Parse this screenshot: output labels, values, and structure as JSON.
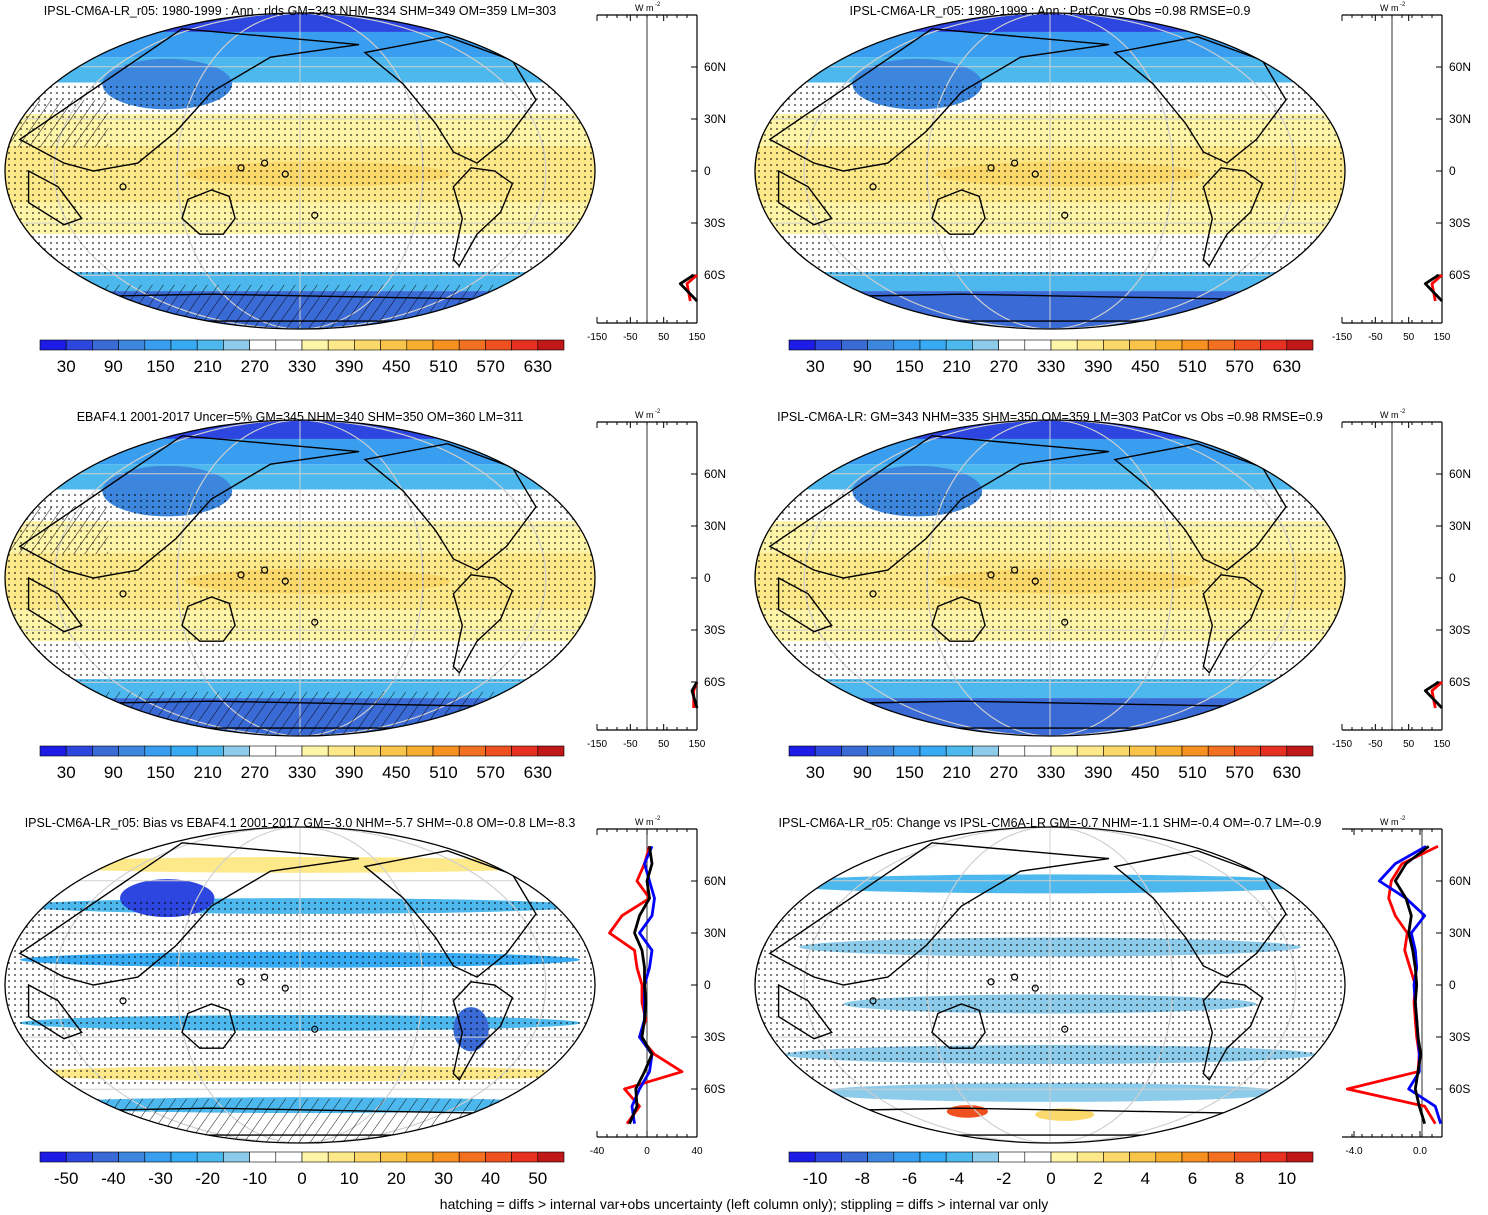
{
  "footer": "hatching = diffs > internal var+obs uncertainty (left column only); stippling = diffs > internal var only",
  "colors": {
    "levels": [
      "#1c1ce6",
      "#2e46e0",
      "#3a6ad6",
      "#3c86de",
      "#3a9ef0",
      "#36aaf2",
      "#4cb8ee",
      "#8ccbea",
      "#ffffff",
      "#ffffff",
      "#fff5a8",
      "#fde98a",
      "#fbd86a",
      "#f9c44a",
      "#f7ae2e",
      "#f69020",
      "#f27020",
      "#ee5020",
      "#e63020",
      "#c01818"
    ],
    "land_outline": "#000000",
    "profile_model": "#000000",
    "profile_obs": "#ff0000",
    "profile_other": "#0000ff"
  },
  "panels": [
    {
      "title": "IPSL-CM6A-LR_r05: 1980-1999 : Ann : rlds GM=343 NHM=334 SHM=349 OM=359 LM=303",
      "colorbar_labels": [
        "30",
        "90",
        "150",
        "210",
        "270",
        "330",
        "390",
        "450",
        "510",
        "570",
        "630"
      ],
      "profile": {
        "unit": "W m",
        "unit_sup": "-2",
        "x_ticks": [
          "-150",
          "-50",
          "50",
          "150"
        ],
        "y_ticks": [
          "60N",
          "30N",
          "0",
          "30S",
          "60S"
        ]
      }
    },
    {
      "title": "IPSL-CM6A-LR_r05: 1980-1999 : Ann : PatCor vs Obs =0.98 RMSE=0.9",
      "colorbar_labels": [
        "30",
        "90",
        "150",
        "210",
        "270",
        "330",
        "390",
        "450",
        "510",
        "570",
        "630"
      ],
      "profile": {
        "unit": "W m",
        "unit_sup": "-2",
        "x_ticks": [
          "-150",
          "-50",
          "50",
          "150"
        ],
        "y_ticks": [
          "60N",
          "30N",
          "0",
          "30S",
          "60S"
        ]
      }
    },
    {
      "title": "EBAF4.1 2001-2017 Uncer=5% GM=345 NHM=340 SHM=350 OM=360 LM=311",
      "colorbar_labels": [
        "30",
        "90",
        "150",
        "210",
        "270",
        "330",
        "390",
        "450",
        "510",
        "570",
        "630"
      ],
      "profile": {
        "unit": "W m",
        "unit_sup": "-2",
        "x_ticks": [
          "-150",
          "-50",
          "50",
          "150"
        ],
        "y_ticks": [
          "60N",
          "30N",
          "0",
          "30S",
          "60S"
        ]
      }
    },
    {
      "title": "IPSL-CM6A-LR: GM=343 NHM=335 SHM=350 OM=359 LM=303 PatCor vs Obs =0.98 RMSE=0.9",
      "colorbar_labels": [
        "30",
        "90",
        "150",
        "210",
        "270",
        "330",
        "390",
        "450",
        "510",
        "570",
        "630"
      ],
      "profile": {
        "unit": "W m",
        "unit_sup": "-2",
        "x_ticks": [
          "-150",
          "-50",
          "50",
          "150"
        ],
        "y_ticks": [
          "60N",
          "30N",
          "0",
          "30S",
          "60S"
        ]
      }
    },
    {
      "title": "IPSL-CM6A-LR_r05: Bias vs EBAF4.1 2001-2017 GM=-3.0 NHM=-5.7 SHM=-0.8 OM=-0.8 LM=-8.3",
      "colorbar_labels": [
        "-50",
        "-40",
        "-30",
        "-20",
        "-10",
        "0",
        "10",
        "20",
        "30",
        "40",
        "50"
      ],
      "profile": {
        "unit": "W m",
        "unit_sup": "-2",
        "x_ticks": [
          "-40",
          "0",
          "40"
        ],
        "y_ticks": [
          "60N",
          "30N",
          "0",
          "30S",
          "60S"
        ]
      }
    },
    {
      "title": "IPSL-CM6A-LR_r05: Change vs IPSL-CM6A-LR GM=-0.7 NHM=-1.1 SHM=-0.4 OM=-0.7 LM=-0.9",
      "colorbar_labels": [
        "-10",
        "-8",
        "-6",
        "-4",
        "-2",
        "0",
        "2",
        "4",
        "6",
        "8",
        "10"
      ],
      "profile": {
        "unit": "W m",
        "unit_sup": "-2",
        "x_ticks": [
          "-4.0",
          "0.0"
        ],
        "y_ticks": [
          "60N",
          "30N",
          "0",
          "30S",
          "60S"
        ]
      }
    }
  ],
  "chart_data": [
    {
      "type": "heatmap",
      "title": "IPSL-CM6A-LR_r05: 1980-1999 : Ann : rlds GM=343 NHM=334 SHM=349 OM=359 LM=303",
      "kind": "absolute",
      "colorbar": [
        30,
        630
      ],
      "zonal_profile": {
        "x_range": [
          -150,
          150
        ],
        "lat": [
          -75,
          -65,
          -60
        ],
        "model": [
          150,
          100,
          140
        ],
        "obs": [
          130,
          120,
          150
        ]
      }
    },
    {
      "type": "heatmap",
      "title": "IPSL-CM6A-LR_r05: 1980-1999 : Ann : PatCor vs Obs =0.98 RMSE=0.9",
      "kind": "absolute",
      "colorbar": [
        30,
        630
      ],
      "zonal_profile": {
        "x_range": [
          -150,
          150
        ],
        "lat": [
          -75,
          -65,
          -60
        ],
        "model": [
          150,
          100,
          140
        ],
        "obs": [
          130,
          120,
          150
        ]
      }
    },
    {
      "type": "heatmap",
      "title": "EBAF4.1 2001-2017 Uncer=5% GM=345 NHM=340 SHM=350 OM=360 LM=311",
      "kind": "absolute",
      "colorbar": [
        30,
        630
      ],
      "zonal_profile": {
        "x_range": [
          -150,
          150
        ],
        "lat": [
          -75,
          -65,
          -60
        ],
        "model": [
          150,
          135,
          150
        ],
        "obs": [
          140,
          140,
          150
        ]
      }
    },
    {
      "type": "heatmap",
      "title": "IPSL-CM6A-LR: GM=343 NHM=335 SHM=350 OM=359 LM=303 PatCor vs Obs =0.98 RMSE=0.9",
      "kind": "absolute",
      "colorbar": [
        30,
        630
      ],
      "zonal_profile": {
        "x_range": [
          -150,
          150
        ],
        "lat": [
          -75,
          -65,
          -60
        ],
        "model": [
          150,
          100,
          140
        ],
        "obs": [
          130,
          120,
          150
        ]
      }
    },
    {
      "type": "heatmap",
      "title": "IPSL-CM6A-LR_r05: Bias vs EBAF4.1 2001-2017 GM=-3.0 NHM=-5.7 SHM=-0.8 OM=-0.8 LM=-8.3",
      "kind": "bias",
      "colorbar": [
        -50,
        50
      ],
      "zonal_profile": {
        "x_range": [
          -40,
          40
        ],
        "lat": [
          -80,
          -70,
          -60,
          -50,
          -40,
          -30,
          -20,
          -10,
          0,
          10,
          20,
          30,
          40,
          50,
          60,
          70,
          80
        ],
        "model": [
          -14,
          -8,
          -9,
          -2,
          4,
          -4,
          -2,
          -1,
          -2,
          -2,
          -4,
          -10,
          -6,
          2,
          0,
          4,
          2
        ],
        "obs": [
          -16,
          -6,
          -18,
          28,
          6,
          -6,
          -1,
          -4,
          -4,
          -8,
          -10,
          -30,
          -20,
          2,
          -8,
          -2,
          2
        ],
        "other": [
          -10,
          -12,
          -6,
          2,
          4,
          -6,
          -2,
          -2,
          -2,
          2,
          4,
          -6,
          4,
          6,
          2,
          -2,
          4
        ]
      }
    },
    {
      "type": "heatmap",
      "title": "IPSL-CM6A-LR_r05: Change vs IPSL-CM6A-LR GM=-0.7 NHM=-1.1 SHM=-0.4 OM=-0.7 LM=-0.9",
      "kind": "bias",
      "colorbar": [
        -10,
        10
      ],
      "zonal_profile": {
        "x_range": [
          -6,
          1.5
        ],
        "lat": [
          -80,
          -70,
          -60,
          -50,
          -40,
          -30,
          -20,
          -10,
          0,
          10,
          20,
          30,
          40,
          50,
          60,
          70,
          80
        ],
        "model": [
          0.2,
          -0.2,
          -0.5,
          -0.3,
          -0.1,
          -0.3,
          -0.4,
          -0.5,
          -0.4,
          -0.5,
          -0.7,
          -1.0,
          -0.8,
          -1.2,
          -2.0,
          -1.2,
          0.5
        ],
        "obs": [
          1.0,
          0.2,
          -5.6,
          -0.3,
          -0.2,
          -0.4,
          -0.5,
          -0.6,
          -0.5,
          -0.9,
          -1.3,
          -1.1,
          -2.0,
          -2.5,
          -2.3,
          -1.5,
          1.2
        ],
        "other": [
          1.4,
          1.0,
          -1.0,
          -0.2,
          -0.2,
          -0.3,
          -0.4,
          -0.5,
          -0.6,
          -0.4,
          -0.5,
          -0.8,
          0.2,
          -1.2,
          -3.2,
          -2.0,
          0.3
        ]
      }
    }
  ]
}
